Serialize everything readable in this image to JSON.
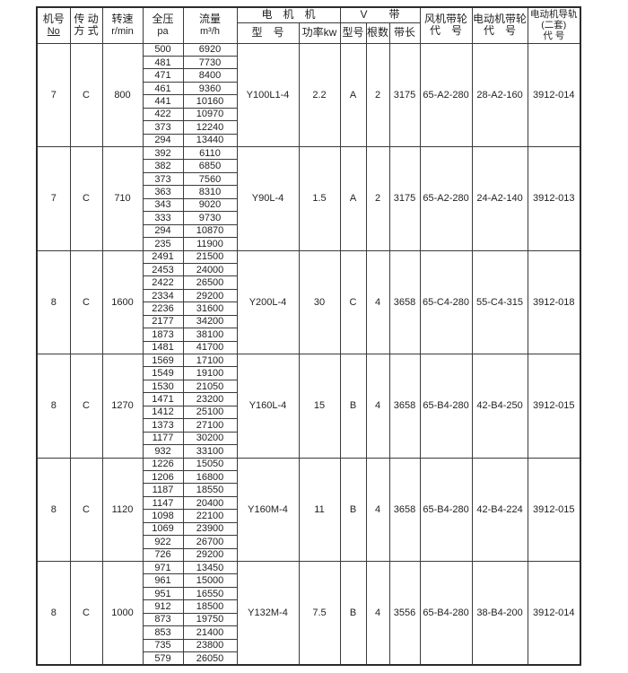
{
  "colors": {
    "border": "#3a3a3a",
    "outer_border": "#2b2b2b",
    "text": "#1f1f1f",
    "background": "#ffffff"
  },
  "table": {
    "header": {
      "machine_no": {
        "line1": "机号",
        "line2": "No"
      },
      "drive": {
        "line1": "传 动",
        "line2": "方 式"
      },
      "speed": {
        "line1": "转速",
        "line2": "r/min"
      },
      "pressure": {
        "line1": "全压",
        "line2": "pa"
      },
      "flow": {
        "line1": "流量",
        "line2": "m³/h"
      },
      "motor_group": "电　机　机",
      "motor_model": "型　号",
      "motor_power": "功率kw",
      "vbelt_group": "V　　带",
      "belt_type": "型号",
      "belt_count": "根数",
      "belt_length": "带长",
      "fan_pulley": {
        "line1": "风机带轮",
        "line2": "代　号"
      },
      "motor_pulley": {
        "line1": "电动机带轮",
        "line2": "代　号"
      },
      "motor_rail": {
        "line1": "电动机导轨",
        "line2": "(二套)",
        "line3": "代 号"
      }
    },
    "groups": [
      {
        "no": "7",
        "drive": "C",
        "speed": "800",
        "rows": [
          [
            "500",
            "6920"
          ],
          [
            "481",
            "7730"
          ],
          [
            "471",
            "8400"
          ],
          [
            "461",
            "9360"
          ],
          [
            "441",
            "10160"
          ],
          [
            "422",
            "10970"
          ],
          [
            "373",
            "12240"
          ],
          [
            "294",
            "13440"
          ]
        ],
        "motor_model": "Y100L1-4",
        "motor_power": "2.2",
        "belt_type": "A",
        "belt_count": "2",
        "belt_length": "3175",
        "fan_pulley": "65-A2-280",
        "motor_pulley": "28-A2-160",
        "rail": "3912-014"
      },
      {
        "no": "7",
        "drive": "C",
        "speed": "710",
        "rows": [
          [
            "392",
            "6110"
          ],
          [
            "382",
            "6850"
          ],
          [
            "373",
            "7560"
          ],
          [
            "363",
            "8310"
          ],
          [
            "343",
            "9020"
          ],
          [
            "333",
            "9730"
          ],
          [
            "294",
            "10870"
          ],
          [
            "235",
            "11900"
          ]
        ],
        "motor_model": "Y90L-4",
        "motor_power": "1.5",
        "belt_type": "A",
        "belt_count": "2",
        "belt_length": "3175",
        "fan_pulley": "65-A2-280",
        "motor_pulley": "24-A2-140",
        "rail": "3912-013"
      },
      {
        "no": "8",
        "drive": "C",
        "speed": "1600",
        "rows": [
          [
            "2491",
            "21500"
          ],
          [
            "2453",
            "24000"
          ],
          [
            "2422",
            "26500"
          ],
          [
            "2334",
            "29200"
          ],
          [
            "2236",
            "31600"
          ],
          [
            "2177",
            "34200"
          ],
          [
            "1873",
            "38100"
          ],
          [
            "1481",
            "41700"
          ]
        ],
        "motor_model": "Y200L-4",
        "motor_power": "30",
        "belt_type": "C",
        "belt_count": "4",
        "belt_length": "3658",
        "fan_pulley": "65-C4-280",
        "motor_pulley": "55-C4-315",
        "rail": "3912-018"
      },
      {
        "no": "8",
        "drive": "C",
        "speed": "1270",
        "rows": [
          [
            "1569",
            "17100"
          ],
          [
            "1549",
            "19100"
          ],
          [
            "1530",
            "21050"
          ],
          [
            "1471",
            "23200"
          ],
          [
            "1412",
            "25100"
          ],
          [
            "1373",
            "27100"
          ],
          [
            "1177",
            "30200"
          ],
          [
            "932",
            "33100"
          ]
        ],
        "motor_model": "Y160L-4",
        "motor_power": "15",
        "belt_type": "B",
        "belt_count": "4",
        "belt_length": "3658",
        "fan_pulley": "65-B4-280",
        "motor_pulley": "42-B4-250",
        "rail": "3912-015"
      },
      {
        "no": "8",
        "drive": "C",
        "speed": "1120",
        "rows": [
          [
            "1226",
            "15050"
          ],
          [
            "1206",
            "16800"
          ],
          [
            "1187",
            "18550"
          ],
          [
            "1147",
            "20400"
          ],
          [
            "1098",
            "22100"
          ],
          [
            "1069",
            "23900"
          ],
          [
            "922",
            "26700"
          ],
          [
            "726",
            "29200"
          ]
        ],
        "motor_model": "Y160M-4",
        "motor_power": "11",
        "belt_type": "B",
        "belt_count": "4",
        "belt_length": "3658",
        "fan_pulley": "65-B4-280",
        "motor_pulley": "42-B4-224",
        "rail": "3912-015"
      },
      {
        "no": "8",
        "drive": "C",
        "speed": "1000",
        "rows": [
          [
            "971",
            "13450"
          ],
          [
            "961",
            "15000"
          ],
          [
            "951",
            "16550"
          ],
          [
            "912",
            "18500"
          ],
          [
            "873",
            "19750"
          ],
          [
            "853",
            "21400"
          ],
          [
            "735",
            "23800"
          ],
          [
            "579",
            "26050"
          ]
        ],
        "motor_model": "Y132M-4",
        "motor_power": "7.5",
        "belt_type": "B",
        "belt_count": "4",
        "belt_length": "3556",
        "fan_pulley": "65-B4-280",
        "motor_pulley": "38-B4-200",
        "rail": "3912-014"
      }
    ]
  }
}
